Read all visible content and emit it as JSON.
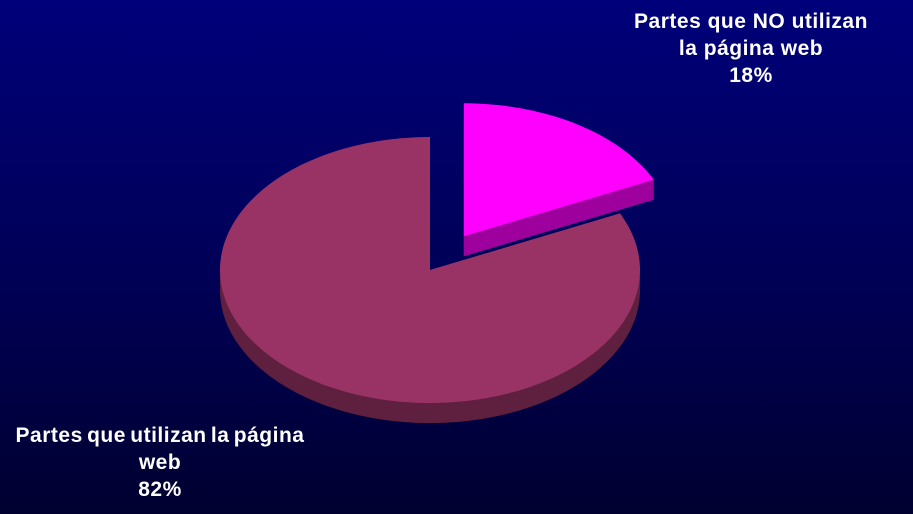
{
  "chart_data": {
    "type": "pie",
    "categories": [
      "Partes que NO utilizan la página web",
      "Partes que utilizan la página web"
    ],
    "values": [
      18,
      82
    ],
    "value_labels": [
      "18%",
      "82%"
    ],
    "colors": [
      "#ff00ff",
      "#993366"
    ]
  }
}
